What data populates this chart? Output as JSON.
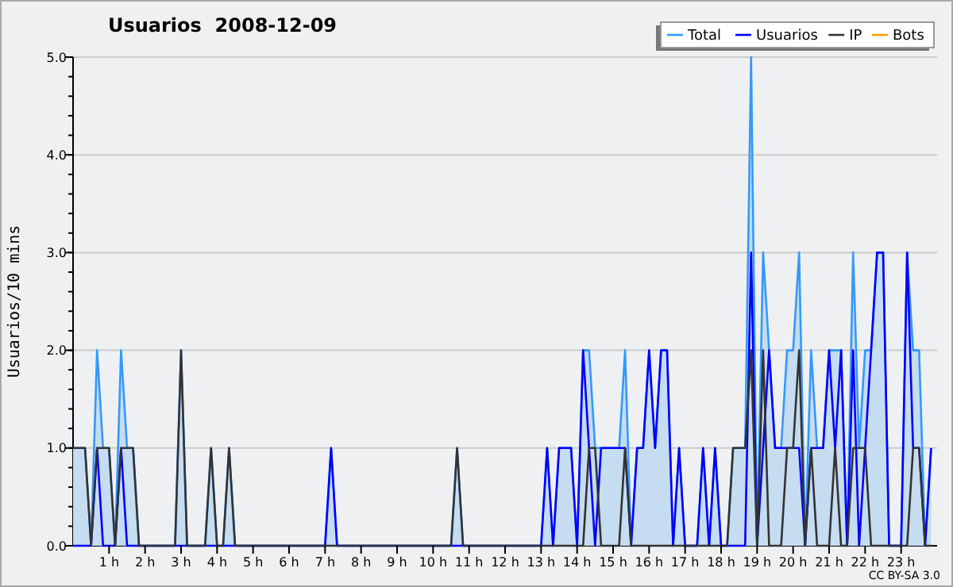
{
  "chart_data": {
    "type": "line",
    "title": "Usuarios  2008-12-09",
    "ylabel": "Usuarios/10 mins",
    "annotations": [
      "CC BY-SA 3.0"
    ],
    "x": [
      0,
      0.167,
      0.333,
      0.5,
      0.667,
      0.833,
      1,
      1.167,
      1.333,
      1.5,
      1.667,
      1.833,
      2,
      2.167,
      2.333,
      2.5,
      2.667,
      2.833,
      3,
      3.167,
      3.333,
      3.5,
      3.667,
      3.833,
      4,
      4.167,
      4.333,
      4.5,
      4.667,
      4.833,
      5,
      5.167,
      5.333,
      5.5,
      5.667,
      5.833,
      6,
      6.167,
      6.333,
      6.5,
      6.667,
      6.833,
      7,
      7.167,
      7.333,
      7.5,
      7.667,
      7.833,
      8,
      8.167,
      8.333,
      8.5,
      8.667,
      8.833,
      9,
      9.167,
      9.333,
      9.5,
      9.667,
      9.833,
      10,
      10.167,
      10.333,
      10.5,
      10.667,
      10.833,
      11,
      11.167,
      11.333,
      11.5,
      11.667,
      11.833,
      12,
      12.167,
      12.333,
      12.5,
      12.667,
      12.833,
      13,
      13.167,
      13.333,
      13.5,
      13.667,
      13.833,
      14,
      14.167,
      14.333,
      14.5,
      14.667,
      14.833,
      15,
      15.167,
      15.333,
      15.5,
      15.667,
      15.833,
      16,
      16.167,
      16.333,
      16.5,
      16.667,
      16.833,
      17,
      17.167,
      17.333,
      17.5,
      17.667,
      17.833,
      18,
      18.167,
      18.333,
      18.5,
      18.667,
      18.833,
      19,
      19.167,
      19.333,
      19.5,
      19.667,
      19.833,
      20,
      20.167,
      20.333,
      20.5,
      20.667,
      20.833,
      21,
      21.167,
      21.333,
      21.5,
      21.667,
      21.833,
      22,
      22.167,
      22.333,
      22.5,
      22.667,
      22.833,
      23,
      23.167,
      23.333,
      23.5,
      23.667,
      23.833
    ],
    "series": [
      {
        "name": "Total",
        "type": "area",
        "color": "#3399ff",
        "values": [
          1,
          1,
          1,
          0,
          2,
          1,
          1,
          0,
          2,
          1,
          1,
          0,
          0,
          0,
          0,
          0,
          0,
          0,
          2,
          0,
          0,
          0,
          0,
          1,
          0,
          0,
          1,
          0,
          0,
          0,
          0,
          0,
          0,
          0,
          0,
          0,
          0,
          0,
          0,
          0,
          0,
          0,
          0,
          1,
          0,
          0,
          0,
          0,
          0,
          0,
          0,
          0,
          0,
          0,
          0,
          0,
          0,
          0,
          0,
          0,
          0,
          0,
          0,
          0,
          1,
          0,
          0,
          0,
          0,
          0,
          0,
          0,
          0,
          0,
          0,
          0,
          0,
          0,
          0,
          1,
          0,
          1,
          1,
          1,
          0,
          2,
          2,
          1,
          1,
          1,
          1,
          1,
          2,
          0,
          1,
          1,
          2,
          1,
          2,
          2,
          0,
          1,
          0,
          0,
          0,
          1,
          0,
          1,
          0,
          0,
          1,
          1,
          1,
          5,
          0,
          3,
          2,
          1,
          1,
          2,
          2,
          3,
          0,
          2,
          1,
          1,
          2,
          2,
          2,
          0,
          3,
          1,
          2,
          2,
          3,
          3,
          0,
          0,
          0,
          3,
          2,
          2,
          0,
          1
        ]
      },
      {
        "name": "Usuarios",
        "color": "#0000ff",
        "values": [
          0,
          0,
          0,
          0,
          1,
          0,
          0,
          0,
          1,
          0,
          0,
          0,
          0,
          0,
          0,
          0,
          0,
          0,
          0,
          0,
          0,
          0,
          0,
          0,
          0,
          0,
          0,
          0,
          0,
          0,
          0,
          0,
          0,
          0,
          0,
          0,
          0,
          0,
          0,
          0,
          0,
          0,
          0,
          1,
          0,
          0,
          0,
          0,
          0,
          0,
          0,
          0,
          0,
          0,
          0,
          0,
          0,
          0,
          0,
          0,
          0,
          0,
          0,
          0,
          0,
          0,
          0,
          0,
          0,
          0,
          0,
          0,
          0,
          0,
          0,
          0,
          0,
          0,
          0,
          1,
          0,
          1,
          1,
          1,
          0,
          2,
          1,
          0,
          1,
          1,
          1,
          1,
          1,
          0,
          1,
          1,
          2,
          1,
          2,
          2,
          0,
          1,
          0,
          0,
          0,
          1,
          0,
          1,
          0,
          0,
          0,
          0,
          0,
          3,
          0,
          1,
          2,
          1,
          1,
          1,
          1,
          1,
          0,
          1,
          1,
          1,
          2,
          1,
          2,
          0,
          2,
          0,
          1,
          2,
          3,
          3,
          0,
          0,
          0,
          3,
          1,
          1,
          0,
          1
        ]
      },
      {
        "name": "IP",
        "color": "#333333",
        "values": [
          1,
          1,
          1,
          0,
          1,
          1,
          1,
          0,
          1,
          1,
          1,
          0,
          0,
          0,
          0,
          0,
          0,
          0,
          2,
          0,
          0,
          0,
          0,
          1,
          0,
          0,
          1,
          0,
          0,
          0,
          0,
          0,
          0,
          0,
          0,
          0,
          0,
          0,
          0,
          0,
          0,
          0,
          0,
          0,
          0,
          0,
          0,
          0,
          0,
          0,
          0,
          0,
          0,
          0,
          0,
          0,
          0,
          0,
          0,
          0,
          0,
          0,
          0,
          0,
          1,
          0,
          0,
          0,
          0,
          0,
          0,
          0,
          0,
          0,
          0,
          0,
          0,
          0,
          0,
          0,
          0,
          0,
          0,
          0,
          0,
          0,
          1,
          1,
          0,
          0,
          0,
          0,
          1,
          0,
          0,
          0,
          0,
          0,
          0,
          0,
          0,
          0,
          0,
          0,
          0,
          0,
          0,
          0,
          0,
          0,
          1,
          1,
          1,
          2,
          0,
          2,
          0,
          0,
          0,
          1,
          1,
          2,
          0,
          1,
          0,
          0,
          0,
          1,
          0,
          0,
          1,
          1,
          1,
          0,
          0,
          0,
          0,
          0,
          0,
          0,
          1,
          1,
          0,
          0
        ]
      },
      {
        "name": "Bots",
        "color": "#ff9900",
        "values": [
          null,
          null,
          null,
          null,
          null,
          null,
          null,
          null,
          null,
          null,
          null,
          null,
          null,
          null,
          null,
          null,
          null,
          null,
          null,
          null,
          null,
          null,
          null,
          null,
          null,
          null,
          null,
          null,
          null,
          null,
          null,
          null,
          null,
          null,
          null,
          null,
          null,
          null,
          null,
          null,
          null,
          null,
          null,
          null,
          null,
          null,
          null,
          null,
          null,
          null,
          null,
          null,
          null,
          null,
          null,
          null,
          null,
          null,
          null,
          null,
          null,
          null,
          null,
          null,
          null,
          null,
          null,
          null,
          null,
          null,
          null,
          null,
          null,
          null,
          null,
          null,
          null,
          null,
          null,
          null,
          null,
          null,
          null,
          null,
          null,
          null,
          null,
          null,
          null,
          null,
          null,
          null,
          null,
          null,
          null,
          null,
          null,
          null,
          null,
          null,
          null,
          null,
          null,
          null,
          null,
          null,
          null,
          null,
          null,
          null,
          null,
          null,
          null,
          null,
          null,
          null,
          null,
          null,
          null,
          null,
          null,
          null,
          null,
          null,
          null,
          null,
          null,
          null,
          null,
          null,
          null,
          null,
          null,
          null,
          null,
          null,
          null,
          null,
          null,
          null,
          null,
          null,
          null,
          null
        ]
      }
    ],
    "xlim": [
      0,
      24
    ],
    "xticks": [
      {
        "value": 1,
        "label": "1 h"
      },
      {
        "value": 2,
        "label": "2 h"
      },
      {
        "value": 3,
        "label": "3 h"
      },
      {
        "value": 4,
        "label": "4 h"
      },
      {
        "value": 5,
        "label": "5 h"
      },
      {
        "value": 6,
        "label": "6 h"
      },
      {
        "value": 7,
        "label": "7 h"
      },
      {
        "value": 8,
        "label": "8 h"
      },
      {
        "value": 9,
        "label": "9 h"
      },
      {
        "value": 10,
        "label": "10 h"
      },
      {
        "value": 11,
        "label": "11 h"
      },
      {
        "value": 12,
        "label": "12 h"
      },
      {
        "value": 13,
        "label": "13 h"
      },
      {
        "value": 14,
        "label": "14 h"
      },
      {
        "value": 15,
        "label": "15 h"
      },
      {
        "value": 16,
        "label": "16 h"
      },
      {
        "value": 17,
        "label": "17 h"
      },
      {
        "value": 18,
        "label": "18 h"
      },
      {
        "value": 19,
        "label": "19 h"
      },
      {
        "value": 20,
        "label": "20 h"
      },
      {
        "value": 21,
        "label": "21 h"
      },
      {
        "value": 22,
        "label": "22 h"
      },
      {
        "value": 23,
        "label": "23 h"
      }
    ],
    "ylim": [
      0,
      5
    ],
    "yticks": [
      {
        "value": 0,
        "label": "0.0"
      },
      {
        "value": 1,
        "label": "1.0"
      },
      {
        "value": 2,
        "label": "2.0"
      },
      {
        "value": 3,
        "label": "3.0"
      },
      {
        "value": 4,
        "label": "4.0"
      },
      {
        "value": 5,
        "label": "5.0"
      }
    ],
    "grid": "y",
    "legend": "top right",
    "marker": "none",
    "line_style": "solid"
  }
}
